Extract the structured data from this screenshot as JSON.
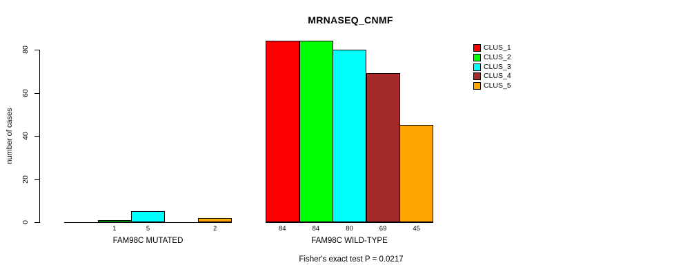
{
  "chart_data": {
    "type": "bar",
    "title": "MRNASEQ_CNMF",
    "ylabel": "number of cases",
    "xlabel": "",
    "ylim": [
      0,
      84
    ],
    "yticks": [
      0,
      20,
      40,
      60,
      80
    ],
    "grid": false,
    "legend_position": "top-right",
    "categories": [
      "FAM98C MUTATED",
      "FAM98C WILD-TYPE"
    ],
    "series": [
      {
        "name": "CLUS_1",
        "color": "#FF0000",
        "values": [
          0,
          84
        ]
      },
      {
        "name": "CLUS_2",
        "color": "#00FF00",
        "values": [
          1,
          84
        ]
      },
      {
        "name": "CLUS_3",
        "color": "#00FFFF",
        "values": [
          5,
          80
        ]
      },
      {
        "name": "CLUS_4",
        "color": "#A52A2A",
        "values": [
          0,
          69
        ]
      },
      {
        "name": "CLUS_5",
        "color": "#FFA500",
        "values": [
          2,
          45
        ]
      }
    ],
    "bar_value_labels_shown_for_nonzero_only": true,
    "annotation": "Fisher's exact test P = 0.0217"
  }
}
